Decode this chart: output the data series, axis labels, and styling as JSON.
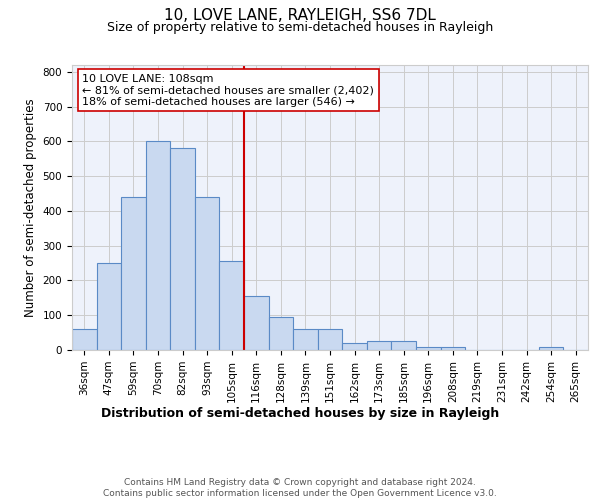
{
  "title1": "10, LOVE LANE, RAYLEIGH, SS6 7DL",
  "title2": "Size of property relative to semi-detached houses in Rayleigh",
  "xlabel": "Distribution of semi-detached houses by size in Rayleigh",
  "ylabel": "Number of semi-detached properties",
  "categories": [
    "36sqm",
    "47sqm",
    "59sqm",
    "70sqm",
    "82sqm",
    "93sqm",
    "105sqm",
    "116sqm",
    "128sqm",
    "139sqm",
    "151sqm",
    "162sqm",
    "173sqm",
    "185sqm",
    "196sqm",
    "208sqm",
    "219sqm",
    "231sqm",
    "242sqm",
    "254sqm",
    "265sqm"
  ],
  "values": [
    60,
    250,
    440,
    600,
    580,
    440,
    255,
    155,
    95,
    60,
    60,
    20,
    25,
    25,
    10,
    10,
    0,
    0,
    0,
    10,
    0
  ],
  "bar_color": "#c9d9f0",
  "bar_edge_color": "#5a8ac6",
  "vline_x_index": 6.5,
  "vline_color": "#cc0000",
  "annotation_text": "10 LOVE LANE: 108sqm\n← 81% of semi-detached houses are smaller (2,402)\n18% of semi-detached houses are larger (546) →",
  "annotation_box_color": "#ffffff",
  "annotation_box_edge": "#cc0000",
  "ylim": [
    0,
    820
  ],
  "yticks": [
    0,
    100,
    200,
    300,
    400,
    500,
    600,
    700,
    800
  ],
  "grid_color": "#cccccc",
  "background_color": "#eef2fb",
  "footer": "Contains HM Land Registry data © Crown copyright and database right 2024.\nContains public sector information licensed under the Open Government Licence v3.0.",
  "title1_fontsize": 11,
  "title2_fontsize": 9,
  "xlabel_fontsize": 9,
  "ylabel_fontsize": 8.5,
  "tick_fontsize": 7.5,
  "annotation_fontsize": 8,
  "footer_fontsize": 6.5
}
